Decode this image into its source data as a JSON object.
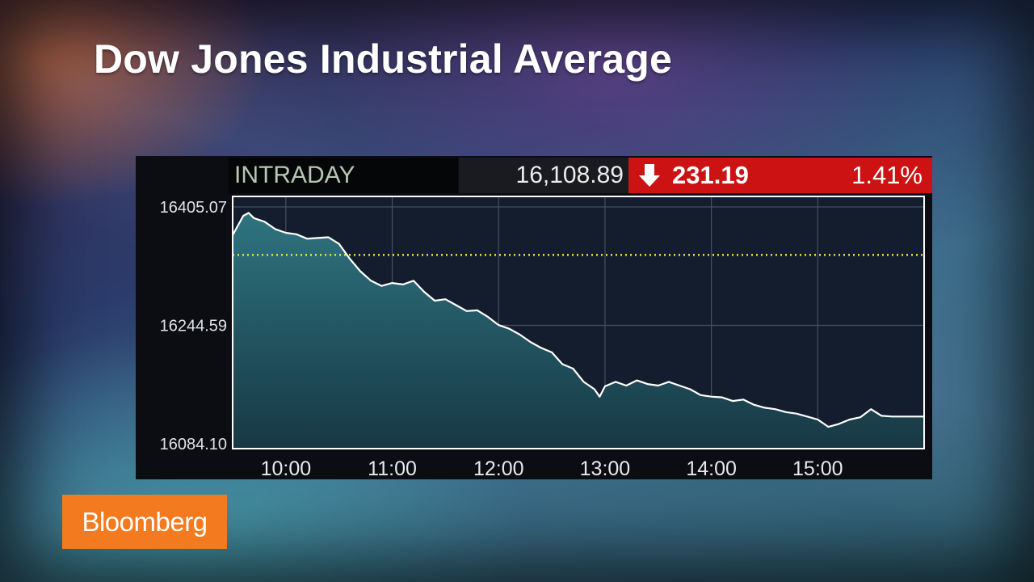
{
  "title": "Dow Jones Industrial Average",
  "ticker": {
    "label": "INTRADAY",
    "price": "16,108.89",
    "change": "231.19",
    "change_pct": "1.41%",
    "direction_icon": "arrow-down-icon",
    "colors": {
      "down": "#cc1212"
    }
  },
  "brand": {
    "logo_text": "Bloomberg",
    "color": "#f47a20"
  },
  "chart_data": {
    "type": "area",
    "y_tick_labels": [
      "16405.07",
      "16244.59",
      "16084.10"
    ],
    "y_ticks": [
      16405.07,
      16244.59,
      16084.1
    ],
    "ylim": [
      16084.1,
      16405.07
    ],
    "x_tick_labels": [
      "10:00",
      "11:00",
      "12:00",
      "13:00",
      "14:00",
      "15:00"
    ],
    "x_ticks": [
      10,
      11,
      12,
      13,
      14,
      15
    ],
    "xlim": [
      9.5,
      16.0
    ],
    "reference_line": 16340,
    "grid": true,
    "series": [
      {
        "x": [
          9.5,
          9.55,
          9.6,
          9.65,
          9.7,
          9.8,
          9.9,
          10.0,
          10.1,
          10.2,
          10.3,
          10.4,
          10.5,
          10.6,
          10.7,
          10.8,
          10.9,
          11.0,
          11.1,
          11.2,
          11.3,
          11.4,
          11.5,
          11.6,
          11.7,
          11.8,
          11.9,
          12.0,
          12.1,
          12.2,
          12.3,
          12.4,
          12.5,
          12.6,
          12.7,
          12.8,
          12.9,
          12.95,
          13.0,
          13.1,
          13.2,
          13.3,
          13.4,
          13.5,
          13.6,
          13.7,
          13.8,
          13.9,
          14.0,
          14.1,
          14.2,
          14.3,
          14.4,
          14.5,
          14.6,
          14.7,
          14.8,
          14.9,
          15.0,
          15.1,
          15.2,
          15.3,
          15.4,
          15.5,
          15.6,
          15.7,
          15.8,
          15.9,
          16.0
        ],
        "values": [
          16367,
          16380,
          16393,
          16397,
          16390,
          16385,
          16375,
          16370,
          16368,
          16362,
          16363,
          16364,
          16355,
          16335,
          16318,
          16305,
          16298,
          16302,
          16300,
          16305,
          16290,
          16278,
          16280,
          16272,
          16264,
          16265,
          16256,
          16245,
          16240,
          16232,
          16222,
          16214,
          16208,
          16192,
          16186,
          16168,
          16158,
          16148,
          16162,
          16168,
          16163,
          16170,
          16165,
          16163,
          16168,
          16163,
          16158,
          16150,
          16148,
          16147,
          16142,
          16144,
          16137,
          16133,
          16131,
          16127,
          16125,
          16121,
          16117,
          16107,
          16111,
          16117,
          16120,
          16131,
          16122,
          16121,
          16121,
          16121,
          16121
        ]
      }
    ]
  }
}
